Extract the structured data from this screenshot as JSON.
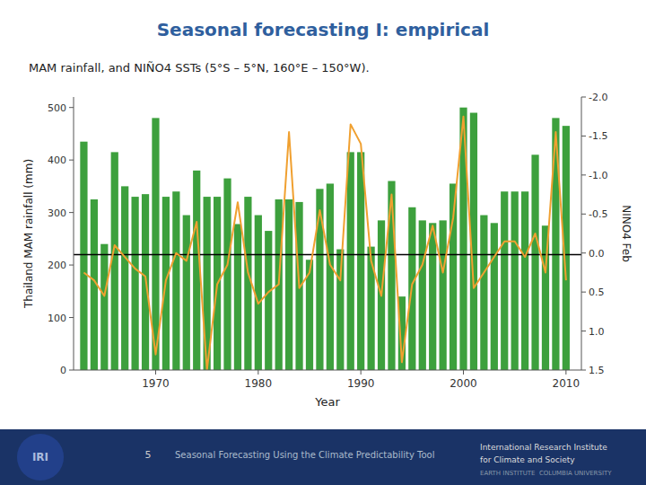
{
  "chart_data": {
    "type": "bar",
    "title": "Seasonal forecasting I: empirical",
    "subtitle": "MAM rainfall, and NIÑO4 SSTs (5°S – 5°N, 160°E – 150°W).",
    "x_label": "Year",
    "y_label": "Thailand MAM rainfall (mm)",
    "y2_label": "NINO4 Feb",
    "x": [
      1963,
      1964,
      1965,
      1966,
      1967,
      1968,
      1969,
      1970,
      1971,
      1972,
      1973,
      1974,
      1975,
      1976,
      1977,
      1978,
      1979,
      1980,
      1981,
      1982,
      1983,
      1984,
      1985,
      1986,
      1987,
      1988,
      1989,
      1990,
      1991,
      1992,
      1993,
      1994,
      1995,
      1996,
      1997,
      1998,
      1999,
      2000,
      2001,
      2002,
      2003,
      2004,
      2005,
      2006,
      2007,
      2008,
      2009,
      2010
    ],
    "series": [
      {
        "type": "bar",
        "axis": "y",
        "color": "#3da03d",
        "values": [
          435,
          325,
          240,
          415,
          350,
          330,
          335,
          480,
          330,
          340,
          295,
          380,
          330,
          330,
          365,
          278,
          330,
          295,
          265,
          325,
          325,
          320,
          210,
          345,
          355,
          230,
          415,
          415,
          235,
          285,
          360,
          140,
          310,
          285,
          280,
          285,
          355,
          500,
          490,
          295,
          280,
          340,
          340,
          340,
          410,
          275,
          480,
          465
        ]
      },
      {
        "type": "line",
        "axis": "y2",
        "color": "#f0a030",
        "values": [
          0.25,
          0.35,
          0.55,
          -0.1,
          0.05,
          0.2,
          0.3,
          1.3,
          0.35,
          0.0,
          0.1,
          -0.4,
          1.5,
          0.4,
          0.15,
          -0.65,
          0.25,
          0.65,
          0.5,
          0.4,
          -1.55,
          0.45,
          0.25,
          -0.55,
          0.15,
          0.35,
          -1.65,
          -1.4,
          0.1,
          0.55,
          -0.75,
          1.4,
          0.4,
          0.15,
          -0.35,
          0.25,
          -0.45,
          -1.75,
          0.45,
          0.25,
          0.05,
          -0.15,
          -0.15,
          0.05,
          -0.25,
          0.25,
          -1.55,
          0.35
        ]
      }
    ],
    "mean": 220,
    "xlim": [
      1962.0,
      2011.5
    ],
    "xticks": [
      1970,
      1980,
      1990,
      2000,
      2010
    ],
    "ylim": [
      0,
      520
    ],
    "yticks": [
      0,
      100,
      200,
      300,
      400,
      500
    ],
    "y2lim": [
      1.5,
      -2.0
    ],
    "y2ticks": [
      {
        "value": -2.0,
        "label": "-2.0"
      },
      -1.5,
      {
        "value": -1.0,
        "label": "-1.0"
      },
      -0.5,
      {
        "value": 0.0,
        "label": "0.0"
      },
      0.5,
      {
        "value": 1.0,
        "label": "1.0"
      },
      1.5
    ],
    "grid": false,
    "annotations": [
      "IRI",
      "5",
      "Seasonal Forecasting Using the Climate Predictability Tool",
      "International Research Institute",
      "for Climate and Society",
      "EARTH INSTITUTE  COLUMBIA UNIVERSITY"
    ]
  }
}
